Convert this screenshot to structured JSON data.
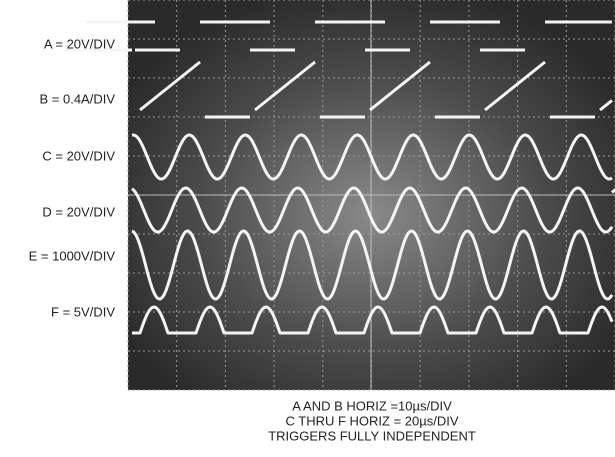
{
  "channel_labels": [
    "A = 20V/DIV",
    "B = 0.4A/DIV",
    "C = 20V/DIV",
    "D = 20V/DIV",
    "E = 1000V/DIV",
    "F = 5V/DIV"
  ],
  "caption_lines": [
    "A AND B HORIZ =10µs/DIV",
    "C THRU F HORIZ = 20µs/DIV",
    "TRIGGERS FULLY INDEPENDENT"
  ]
}
